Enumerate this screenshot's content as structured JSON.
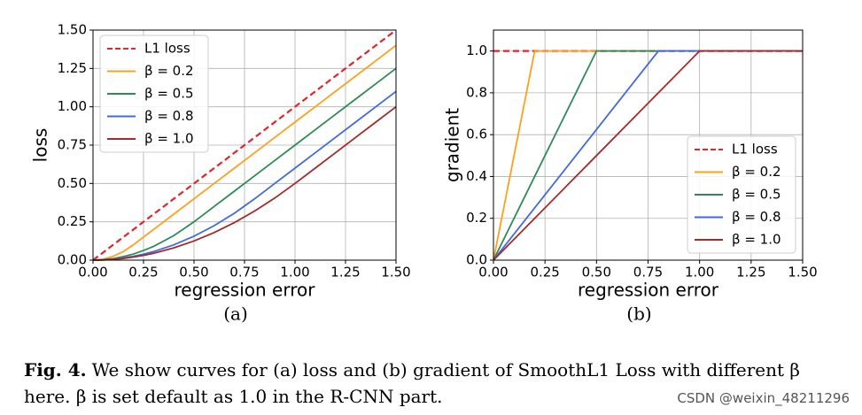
{
  "chart_data": [
    {
      "type": "line",
      "subplot_label": "(a)",
      "xlabel": "regression error",
      "ylabel": "loss",
      "x": [
        0,
        0.05,
        0.1,
        0.15,
        0.2,
        0.25,
        0.3,
        0.4,
        0.5,
        0.6,
        0.7,
        0.8,
        0.9,
        1.0,
        1.1,
        1.2,
        1.3,
        1.4,
        1.5
      ],
      "series": [
        {
          "name": "L1 loss",
          "color": "#e3242b",
          "line_style": "dashed",
          "values": [
            0,
            0.05,
            0.1,
            0.15,
            0.2,
            0.25,
            0.3,
            0.4,
            0.5,
            0.6,
            0.7,
            0.8,
            0.9,
            1.0,
            1.1,
            1.2,
            1.3,
            1.4,
            1.5
          ]
        },
        {
          "name": "β = 0.2",
          "color": "#ff9f1c",
          "line_style": "solid",
          "values": [
            0,
            0.006,
            0.025,
            0.056,
            0.1,
            0.15,
            0.2,
            0.3,
            0.4,
            0.5,
            0.6,
            0.7,
            0.8,
            0.9,
            1.0,
            1.1,
            1.2,
            1.3,
            1.4
          ]
        },
        {
          "name": "β = 0.5",
          "color": "#2e8b57",
          "line_style": "solid",
          "values": [
            0,
            0.003,
            0.01,
            0.023,
            0.04,
            0.063,
            0.09,
            0.16,
            0.25,
            0.35,
            0.45,
            0.55,
            0.65,
            0.75,
            0.85,
            0.95,
            1.05,
            1.15,
            1.25
          ]
        },
        {
          "name": "β = 0.8",
          "color": "#4169e1",
          "line_style": "solid",
          "values": [
            0,
            0.002,
            0.006,
            0.014,
            0.025,
            0.039,
            0.056,
            0.1,
            0.156,
            0.225,
            0.306,
            0.4,
            0.5,
            0.6,
            0.7,
            0.8,
            0.9,
            1.0,
            1.1
          ]
        },
        {
          "name": "β = 1.0",
          "color": "#a52a2a",
          "line_style": "solid",
          "values": [
            0,
            0.001,
            0.005,
            0.011,
            0.02,
            0.031,
            0.045,
            0.08,
            0.125,
            0.18,
            0.245,
            0.32,
            0.405,
            0.5,
            0.6,
            0.7,
            0.8,
            0.9,
            1.0
          ]
        }
      ],
      "xlim": [
        0,
        1.5
      ],
      "ylim": [
        0,
        1.5
      ],
      "xticks": [
        {
          "value": 0,
          "label": "0.00"
        },
        {
          "value": 0.25,
          "label": "0.25"
        },
        {
          "value": 0.5,
          "label": "0.50"
        },
        {
          "value": 0.75,
          "label": "0.75"
        },
        {
          "value": 1,
          "label": "1.00"
        },
        {
          "value": 1.25,
          "label": "1.25"
        },
        {
          "value": 1.5,
          "label": "1.50"
        }
      ],
      "yticks": [
        {
          "value": 0,
          "label": "0.00"
        },
        {
          "value": 0.25,
          "label": "0.25"
        },
        {
          "value": 0.5,
          "label": "0.50"
        },
        {
          "value": 0.75,
          "label": "0.75"
        },
        {
          "value": 1,
          "label": "1.00"
        },
        {
          "value": 1.25,
          "label": "1.25"
        },
        {
          "value": 1.5,
          "label": "1.50"
        }
      ],
      "grid": true,
      "legend": "upper left"
    },
    {
      "type": "line",
      "subplot_label": "(b)",
      "xlabel": "regression error",
      "ylabel": "gradient",
      "x": [
        0,
        0.2,
        0.5,
        0.8,
        1.0,
        1.5
      ],
      "series": [
        {
          "name": "L1 loss",
          "color": "#e3242b",
          "line_style": "dashed",
          "values": [
            1,
            1,
            1,
            1,
            1,
            1
          ]
        },
        {
          "name": "β = 0.2",
          "color": "#ff9f1c",
          "line_style": "solid",
          "values": [
            0,
            1,
            1,
            1,
            1,
            1
          ]
        },
        {
          "name": "β = 0.5",
          "color": "#2e8b57",
          "line_style": "solid",
          "values": [
            0,
            0.4,
            1,
            1,
            1,
            1
          ]
        },
        {
          "name": "β = 0.8",
          "color": "#4169e1",
          "line_style": "solid",
          "values": [
            0,
            0.25,
            0.625,
            1,
            1,
            1
          ]
        },
        {
          "name": "β = 1.0",
          "color": "#a52a2a",
          "line_style": "solid",
          "values": [
            0,
            0.2,
            0.5,
            0.8,
            1,
            1
          ]
        }
      ],
      "xlim": [
        0,
        1.5
      ],
      "ylim": [
        0,
        1.1
      ],
      "xticks": [
        {
          "value": 0,
          "label": "0.00"
        },
        {
          "value": 0.25,
          "label": "0.25"
        },
        {
          "value": 0.5,
          "label": "0.50"
        },
        {
          "value": 0.75,
          "label": "0.75"
        },
        {
          "value": 1,
          "label": "1.00"
        },
        {
          "value": 1.25,
          "label": "1.25"
        },
        {
          "value": 1.5,
          "label": "1.50"
        }
      ],
      "yticks": [
        {
          "value": 0,
          "label": "0.0"
        },
        {
          "value": 0.2,
          "label": "0.2"
        },
        {
          "value": 0.4,
          "label": "0.4"
        },
        {
          "value": 0.6,
          "label": "0.6"
        },
        {
          "value": 0.8,
          "label": "0.8"
        },
        {
          "value": 1,
          "label": "1.0"
        }
      ],
      "grid": true,
      "legend": "lower right"
    }
  ],
  "caption": {
    "label": "Fig. 4.",
    "text": "We show curves for (a) loss and (b) gradient of SmoothL1 Loss with different β here. β is set default as 1.0 in the R-CNN part."
  },
  "watermark": "CSDN @weixin_48211296"
}
